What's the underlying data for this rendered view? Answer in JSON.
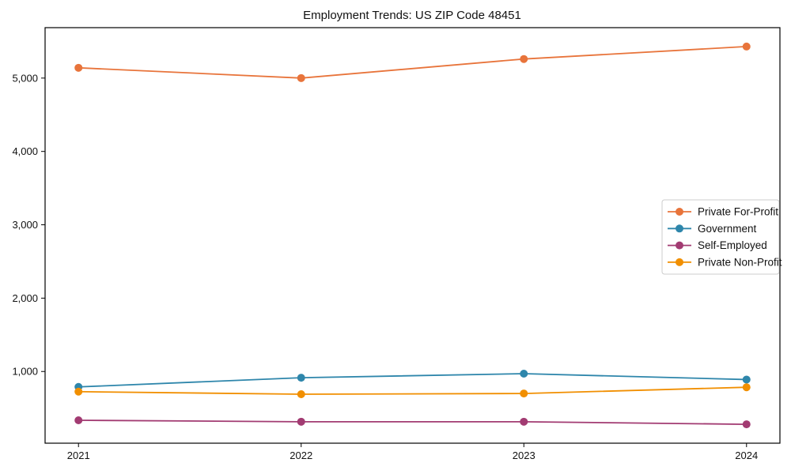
{
  "figure": {
    "title": "Employment Trends: US ZIP Code 48451"
  },
  "chart_data": {
    "type": "line",
    "title": "Employment Trends: US ZIP Code 48451",
    "xlabel": "",
    "ylabel": "",
    "categories": [
      "2021",
      "2022",
      "2023",
      "2024"
    ],
    "x": [
      2021,
      2022,
      2023,
      2024
    ],
    "series": [
      {
        "name": "Private For-Profit",
        "color": "#E8743B",
        "values": [
          5140,
          5000,
          5260,
          5430
        ]
      },
      {
        "name": "Government",
        "color": "#2E86AB",
        "values": [
          790,
          915,
          970,
          890
        ]
      },
      {
        "name": "Self-Employed",
        "color": "#A23B72",
        "values": [
          335,
          315,
          315,
          280
        ]
      },
      {
        "name": "Private Non-Profit",
        "color": "#F18F01",
        "values": [
          725,
          690,
          700,
          785
        ]
      }
    ],
    "yticks": [
      1000,
      2000,
      3000,
      4000,
      5000
    ],
    "ytick_labels": [
      "1,000",
      "2,000",
      "3,000",
      "4,000",
      "5,000"
    ],
    "ylim": [
      22.5,
      5687.5
    ],
    "xlim": [
      -0.15,
      3.15
    ],
    "grid": false,
    "legend_position": "center right",
    "marker": "circle",
    "line_width": 1.8,
    "marker_radius": 5,
    "axis_color": "#000000",
    "legend_border_color": "#cccccc"
  }
}
